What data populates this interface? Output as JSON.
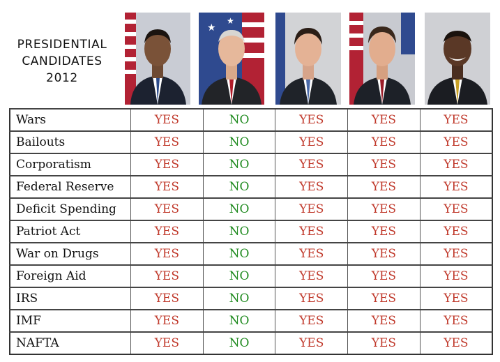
{
  "title": {
    "line1": "PRESIDENTIAL",
    "line2": "CANDIDATES",
    "line3": "2012"
  },
  "colors": {
    "yes": "#c0392b",
    "no": "#1f8a1f"
  },
  "rows": [
    {
      "label": "Wars",
      "values": [
        "YES",
        "NO",
        "YES",
        "YES",
        "YES"
      ]
    },
    {
      "label": "Bailouts",
      "values": [
        "YES",
        "NO",
        "YES",
        "YES",
        "YES"
      ]
    },
    {
      "label": "Corporatism",
      "values": [
        "YES",
        "NO",
        "YES",
        "YES",
        "YES"
      ]
    },
    {
      "label": "Federal Reserve",
      "values": [
        "YES",
        "NO",
        "YES",
        "YES",
        "YES"
      ]
    },
    {
      "label": "Deficit Spending",
      "values": [
        "YES",
        "NO",
        "YES",
        "YES",
        "YES"
      ]
    },
    {
      "label": "Patriot Act",
      "values": [
        "YES",
        "NO",
        "YES",
        "YES",
        "YES"
      ]
    },
    {
      "label": "War on Drugs",
      "values": [
        "YES",
        "NO",
        "YES",
        "YES",
        "YES"
      ]
    },
    {
      "label": "Foreign Aid",
      "values": [
        "YES",
        "NO",
        "YES",
        "YES",
        "YES"
      ]
    },
    {
      "label": "IRS",
      "values": [
        "YES",
        "NO",
        "YES",
        "YES",
        "YES"
      ]
    },
    {
      "label": "IMF",
      "values": [
        "YES",
        "NO",
        "YES",
        "YES",
        "YES"
      ]
    },
    {
      "label": "NAFTA",
      "values": [
        "YES",
        "NO",
        "YES",
        "YES",
        "YES"
      ]
    }
  ]
}
